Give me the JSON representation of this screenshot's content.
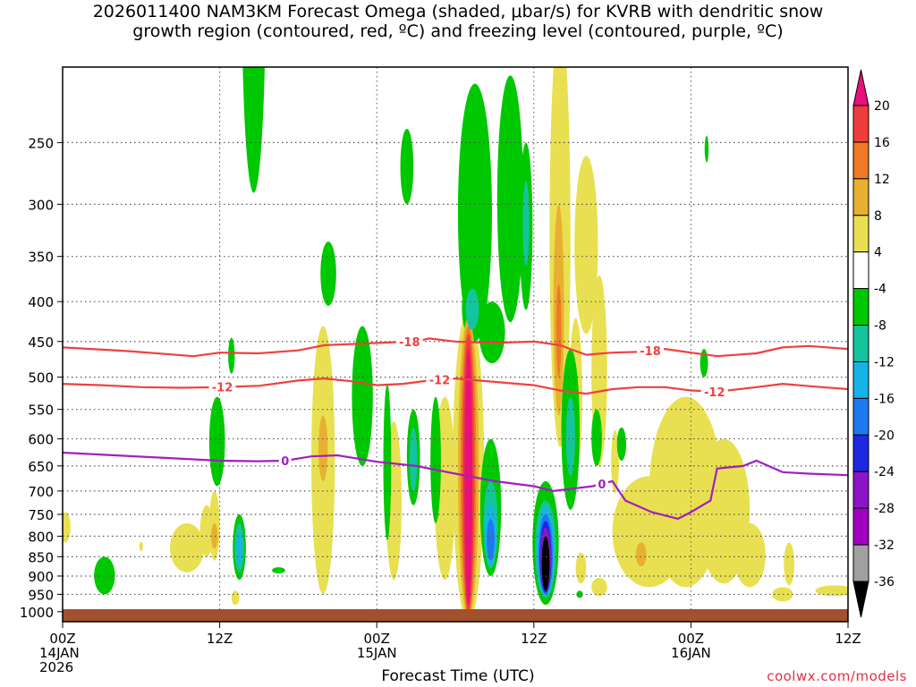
{
  "chart_data": {
    "type": "heatmap",
    "title_line1": "2026011400 NAM3KM Forecast Omega (shaded, μbar/s) for KVRB with dendritic snow",
    "title_line2": "growth region (contoured, red, ºC) and freezing level (contoured, purple, ºC)",
    "xlabel": "Forecast Time (UTC)",
    "x_ticks": [
      {
        "hour": 0,
        "l1": "00Z",
        "l2": "14JAN",
        "l3": "2026"
      },
      {
        "hour": 12,
        "l1": "12Z",
        "l2": "",
        "l3": ""
      },
      {
        "hour": 24,
        "l1": "00Z",
        "l2": "15JAN",
        "l3": ""
      },
      {
        "hour": 36,
        "l1": "12Z",
        "l2": "",
        "l3": ""
      },
      {
        "hour": 48,
        "l1": "00Z",
        "l2": "16JAN",
        "l3": ""
      },
      {
        "hour": 60,
        "l1": "12Z",
        "l2": "",
        "l3": ""
      }
    ],
    "xlim_hours": [
      0,
      60
    ],
    "y_ticks": [
      250,
      300,
      350,
      400,
      450,
      500,
      550,
      600,
      650,
      700,
      750,
      800,
      850,
      900,
      950,
      1000
    ],
    "ylim_hPa": [
      200,
      1030
    ],
    "y_log_scale": true,
    "grid": "dotted horizontal lines at each pressure tick",
    "colorbar": {
      "labels": [
        "20",
        "16",
        "12",
        "8",
        "4",
        "-4",
        "-8",
        "-12",
        "-16",
        "-20",
        "-24",
        "-28",
        "-32",
        "-36"
      ],
      "colors": [
        "#e8107a",
        "#f03c3c",
        "#ee7a24",
        "#e8b030",
        "#e8e050",
        "#ffffff",
        "#00c800",
        "#14c49c",
        "#14b4e8",
        "#1e78f0",
        "#1e28e0",
        "#8c14c8",
        "#a000c0",
        "#a0a0a0",
        "#000000"
      ]
    },
    "omega_regions": [
      {
        "v": -8,
        "t": 3.2,
        "p": 900,
        "w": 0.8,
        "h": 50
      },
      {
        "v": -8,
        "t": 11.8,
        "p": 610,
        "w": 0.6,
        "h": 80
      },
      {
        "v": -8,
        "t": 12.9,
        "p": 470,
        "w": 0.25,
        "h": 25
      },
      {
        "v": -8,
        "t": 13.5,
        "p": 830,
        "w": 0.5,
        "h": 80
      },
      {
        "v": -12,
        "t": 13.5,
        "p": 830,
        "w": 0.35,
        "h": 60
      },
      {
        "v": -16,
        "t": 13.5,
        "p": 830,
        "w": 0.2,
        "h": 40
      },
      {
        "v": -8,
        "t": 14.6,
        "p": 190,
        "w": 0.9,
        "h": 100
      },
      {
        "v": -8,
        "t": 16.5,
        "p": 885,
        "w": 0.5,
        "h": 8
      },
      {
        "v": -8,
        "t": 20.3,
        "p": 370,
        "w": 0.6,
        "h": 35
      },
      {
        "v": -8,
        "t": 22.9,
        "p": 540,
        "w": 0.8,
        "h": 110
      },
      {
        "v": -8,
        "t": 24.8,
        "p": 660,
        "w": 0.3,
        "h": 150
      },
      {
        "v": -8,
        "t": 26.3,
        "p": 270,
        "w": 0.5,
        "h": 30
      },
      {
        "v": -8,
        "t": 26.8,
        "p": 640,
        "w": 0.5,
        "h": 90
      },
      {
        "v": -12,
        "t": 26.8,
        "p": 640,
        "w": 0.3,
        "h": 60
      },
      {
        "v": -8,
        "t": 28.5,
        "p": 650,
        "w": 0.4,
        "h": 120
      },
      {
        "v": -8,
        "t": 31.5,
        "p": 330,
        "w": 1.3,
        "h": 120
      },
      {
        "v": -8,
        "t": 31.3,
        "p": 410,
        "w": 0.8,
        "h": 35
      },
      {
        "v": -12,
        "t": 31.3,
        "p": 410,
        "w": 0.5,
        "h": 25
      },
      {
        "v": -8,
        "t": 32.8,
        "p": 440,
        "w": 1.0,
        "h": 40
      },
      {
        "v": -8,
        "t": 34.2,
        "p": 315,
        "w": 1.0,
        "h": 110
      },
      {
        "v": -8,
        "t": 35.4,
        "p": 330,
        "w": 0.5,
        "h": 80
      },
      {
        "v": -12,
        "t": 35.4,
        "p": 320,
        "w": 0.25,
        "h": 40
      },
      {
        "v": -8,
        "t": 32.7,
        "p": 750,
        "w": 0.8,
        "h": 150
      },
      {
        "v": -12,
        "t": 32.7,
        "p": 780,
        "w": 0.55,
        "h": 100
      },
      {
        "v": -16,
        "t": 32.7,
        "p": 800,
        "w": 0.4,
        "h": 70
      },
      {
        "v": -20,
        "t": 32.7,
        "p": 810,
        "w": 0.3,
        "h": 50
      },
      {
        "v": -8,
        "t": 36.9,
        "p": 830,
        "w": 1.0,
        "h": 150
      },
      {
        "v": -12,
        "t": 36.9,
        "p": 840,
        "w": 0.8,
        "h": 120
      },
      {
        "v": -16,
        "t": 36.9,
        "p": 845,
        "w": 0.65,
        "h": 110
      },
      {
        "v": -20,
        "t": 36.9,
        "p": 850,
        "w": 0.55,
        "h": 100
      },
      {
        "v": -24,
        "t": 36.9,
        "p": 855,
        "w": 0.45,
        "h": 90
      },
      {
        "v": -28,
        "t": 36.9,
        "p": 860,
        "w": 0.4,
        "h": 80
      },
      {
        "v": -36,
        "t": 36.9,
        "p": 870,
        "w": 0.3,
        "h": 70
      },
      {
        "v": -8,
        "t": 38.8,
        "p": 600,
        "w": 0.7,
        "h": 140
      },
      {
        "v": -12,
        "t": 38.8,
        "p": 600,
        "w": 0.35,
        "h": 70
      },
      {
        "v": -8,
        "t": 40.8,
        "p": 600,
        "w": 0.4,
        "h": 50
      },
      {
        "v": -8,
        "t": 39.5,
        "p": 950,
        "w": 0.25,
        "h": 10
      },
      {
        "v": -8,
        "t": 42.7,
        "p": 610,
        "w": 0.35,
        "h": 30
      },
      {
        "v": -8,
        "t": 49.0,
        "p": 480,
        "w": 0.3,
        "h": 20
      },
      {
        "v": -8,
        "t": 49.2,
        "p": 255,
        "w": 0.15,
        "h": 10
      },
      {
        "v": 4,
        "t": 0.2,
        "p": 780,
        "w": 0.4,
        "h": 35
      },
      {
        "v": 4,
        "t": 6.0,
        "p": 825,
        "w": 0.1,
        "h": 12
      },
      {
        "v": 4,
        "t": 9.5,
        "p": 830,
        "w": 1.3,
        "h": 60
      },
      {
        "v": 4,
        "t": 11.0,
        "p": 790,
        "w": 0.5,
        "h": 60
      },
      {
        "v": 4,
        "t": 11.6,
        "p": 780,
        "w": 0.4,
        "h": 80
      },
      {
        "v": 8,
        "t": 11.6,
        "p": 800,
        "w": 0.25,
        "h": 30
      },
      {
        "v": 4,
        "t": 13.2,
        "p": 960,
        "w": 0.3,
        "h": 20
      },
      {
        "v": 4,
        "t": 19.9,
        "p": 690,
        "w": 0.9,
        "h": 260
      },
      {
        "v": 8,
        "t": 19.9,
        "p": 620,
        "w": 0.35,
        "h": 60
      },
      {
        "v": 4,
        "t": 25.3,
        "p": 740,
        "w": 0.6,
        "h": 170
      },
      {
        "v": 4,
        "t": 29.2,
        "p": 720,
        "w": 0.8,
        "h": 190
      },
      {
        "v": 4,
        "t": 30.8,
        "p": 750,
        "w": 0.6,
        "h": 250
      },
      {
        "v": 4,
        "t": 31.0,
        "p": 720,
        "w": 1.2,
        "h": 310
      },
      {
        "v": 8,
        "t": 31.0,
        "p": 720,
        "w": 0.8,
        "h": 300
      },
      {
        "v": 12,
        "t": 31.0,
        "p": 720,
        "w": 0.6,
        "h": 290
      },
      {
        "v": 16,
        "t": 31.0,
        "p": 720,
        "w": 0.45,
        "h": 280
      },
      {
        "v": 20,
        "t": 31.0,
        "p": 720,
        "w": 0.3,
        "h": 260
      },
      {
        "v": 4,
        "t": 38.0,
        "p": 395,
        "w": 0.8,
        "h": 220
      },
      {
        "v": 8,
        "t": 37.9,
        "p": 430,
        "w": 0.4,
        "h": 130
      },
      {
        "v": 12,
        "t": 37.9,
        "p": 440,
        "w": 0.2,
        "h": 60
      },
      {
        "v": 4,
        "t": 40.0,
        "p": 350,
        "w": 0.9,
        "h": 90
      },
      {
        "v": 4,
        "t": 39.2,
        "p": 540,
        "w": 0.5,
        "h": 120
      },
      {
        "v": 4,
        "t": 41.0,
        "p": 510,
        "w": 0.6,
        "h": 140
      },
      {
        "v": 4,
        "t": 39.6,
        "p": 880,
        "w": 0.4,
        "h": 40
      },
      {
        "v": 4,
        "t": 42.2,
        "p": 645,
        "w": 0.3,
        "h": 60
      },
      {
        "v": 4,
        "t": 41.0,
        "p": 930,
        "w": 0.6,
        "h": 25
      },
      {
        "v": 4,
        "t": 44.8,
        "p": 800,
        "w": 2.8,
        "h": 130
      },
      {
        "v": 4,
        "t": 47.6,
        "p": 730,
        "w": 2.8,
        "h": 200
      },
      {
        "v": 4,
        "t": 50.5,
        "p": 760,
        "w": 2.0,
        "h": 160
      },
      {
        "v": 4,
        "t": 52.5,
        "p": 850,
        "w": 1.2,
        "h": 80
      },
      {
        "v": 8,
        "t": 44.2,
        "p": 845,
        "w": 0.4,
        "h": 30
      },
      {
        "v": 4,
        "t": 55.5,
        "p": 870,
        "w": 0.4,
        "h": 55
      },
      {
        "v": 4,
        "t": 55.0,
        "p": 950,
        "w": 0.8,
        "h": 20
      },
      {
        "v": 4,
        "t": 59.0,
        "p": 940,
        "w": 1.5,
        "h": 15
      }
    ],
    "contours": [
      {
        "name": "-18",
        "color": "#f04040",
        "label_at_hours": [
          26.5,
          44.9
        ],
        "points": [
          [
            0,
            458
          ],
          [
            5,
            463
          ],
          [
            10,
            470
          ],
          [
            12,
            465
          ],
          [
            15,
            466
          ],
          [
            18,
            462
          ],
          [
            20,
            455
          ],
          [
            24,
            452
          ],
          [
            27,
            450
          ],
          [
            28,
            446
          ],
          [
            30,
            450
          ],
          [
            33,
            452
          ],
          [
            36,
            450
          ],
          [
            38,
            455
          ],
          [
            40,
            468
          ],
          [
            42,
            465
          ],
          [
            44,
            464
          ],
          [
            46,
            460
          ],
          [
            48,
            465
          ],
          [
            50,
            470
          ],
          [
            53,
            466
          ],
          [
            55,
            458
          ],
          [
            57,
            456
          ],
          [
            60,
            460
          ]
        ]
      },
      {
        "name": "-12",
        "color": "#f04040",
        "label_at_hours": [
          12.2,
          28.8,
          49.8
        ],
        "points": [
          [
            0,
            510
          ],
          [
            3,
            512
          ],
          [
            6,
            515
          ],
          [
            9,
            516
          ],
          [
            12,
            515
          ],
          [
            15,
            513
          ],
          [
            18,
            505
          ],
          [
            20,
            502
          ],
          [
            22,
            506
          ],
          [
            24,
            512
          ],
          [
            26,
            510
          ],
          [
            28,
            505
          ],
          [
            30,
            502
          ],
          [
            33,
            507
          ],
          [
            36,
            512
          ],
          [
            38,
            520
          ],
          [
            40,
            525
          ],
          [
            42,
            518
          ],
          [
            44,
            515
          ],
          [
            46,
            515
          ],
          [
            48,
            520
          ],
          [
            50,
            522
          ],
          [
            53,
            515
          ],
          [
            55,
            510
          ],
          [
            58,
            515
          ],
          [
            60,
            518
          ]
        ]
      },
      {
        "name": "0",
        "color": "#a020c0",
        "label_at_hours": [
          17.0,
          41.2
        ],
        "points": [
          [
            0,
            625
          ],
          [
            4,
            630
          ],
          [
            8,
            635
          ],
          [
            12,
            640
          ],
          [
            15,
            641
          ],
          [
            17,
            640
          ],
          [
            19,
            632
          ],
          [
            21,
            630
          ],
          [
            24,
            642
          ],
          [
            27,
            650
          ],
          [
            30,
            665
          ],
          [
            33,
            680
          ],
          [
            36,
            690
          ],
          [
            37.5,
            700
          ],
          [
            39,
            695
          ],
          [
            40.5,
            690
          ],
          [
            42,
            680
          ],
          [
            43,
            720
          ],
          [
            45,
            745
          ],
          [
            47,
            760
          ],
          [
            48,
            745
          ],
          [
            49.5,
            720
          ],
          [
            49.8,
            680
          ],
          [
            50,
            655
          ],
          [
            52,
            650
          ],
          [
            53,
            640
          ],
          [
            55,
            662
          ],
          [
            57,
            665
          ],
          [
            60,
            668
          ]
        ]
      }
    ]
  }
}
